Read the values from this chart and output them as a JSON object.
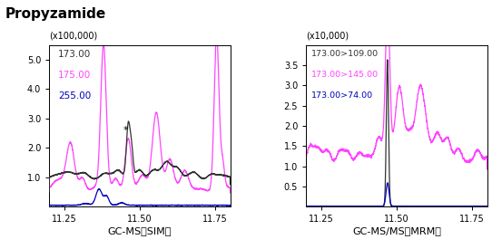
{
  "title": "Propyzamide",
  "left_ylabel": "(x100,000)",
  "right_ylabel": "(x10,000)",
  "xlabel_left": "GC-MS（SIM）",
  "xlabel_right": "GC-MS/MS（MRM）",
  "xmin": 11.2,
  "xmax": 11.8,
  "left_ylim": [
    0,
    5.5
  ],
  "right_ylim": [
    0,
    4.0
  ],
  "left_yticks": [
    1.0,
    2.0,
    3.0,
    4.0,
    5.0
  ],
  "left_ytick_labels": [
    "1.0",
    "2.0",
    "3.0",
    "4.0",
    "5.0"
  ],
  "right_yticks": [
    0.5,
    1.0,
    1.5,
    2.0,
    2.5,
    3.0,
    3.5
  ],
  "right_ytick_labels": [
    "0.5",
    "1.0",
    "1.5",
    "2.0",
    "2.5",
    "3.0",
    "3.5"
  ],
  "left_legend": [
    "173.00",
    "175.00",
    "255.00"
  ],
  "left_legend_colors": [
    "#333333",
    "#ff44ff",
    "#0000bb"
  ],
  "right_legend": [
    "173.00>109.00",
    "173.00>145.00",
    "173.00>74.00"
  ],
  "right_legend_colors": [
    "#333333",
    "#ff44ff",
    "#0000bb"
  ]
}
